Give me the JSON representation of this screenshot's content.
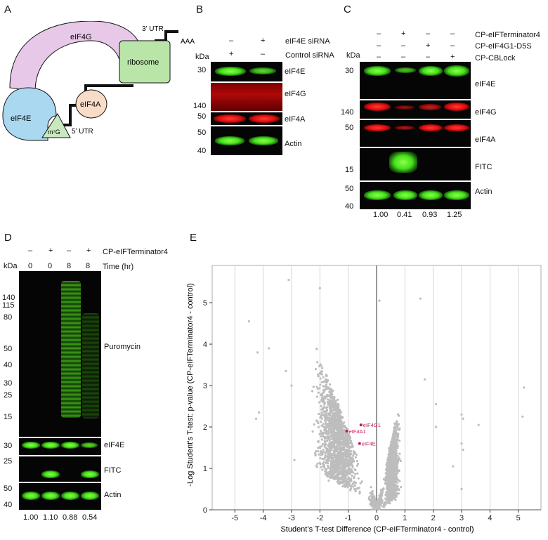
{
  "panels": {
    "a": "A",
    "b": "B",
    "c": "C",
    "d": "D",
    "e": "E"
  },
  "diagram": {
    "utr3": "3’ UTR",
    "aaa": "AAA",
    "ribosome": "ribosome",
    "eif4g": "eIF4G",
    "eif4e": "eIF4E",
    "eif4a": "eIF4A",
    "cap": "m⁷G",
    "utr5": "5’ UTR"
  },
  "panel_b": {
    "row1_label": "eIF4E siRNA",
    "row1_vals": [
      "–",
      "+"
    ],
    "row2_label": "Control siRNA",
    "row2_vals": [
      "+",
      "–"
    ],
    "kda": "kDa",
    "markers": [
      "30",
      "140",
      "50",
      "50",
      "40"
    ],
    "bands": [
      "eIF4E",
      "eIF4G",
      "eIF4A",
      "Actin"
    ]
  },
  "panel_c": {
    "rows": [
      {
        "label": "CP-eIFTerminator4",
        "vals": [
          "–",
          "+",
          "–",
          "–"
        ]
      },
      {
        "label": "CP-eIF4G1-D5S",
        "vals": [
          "–",
          "–",
          "+",
          "–"
        ]
      },
      {
        "label": "CP-CBLock",
        "vals": [
          "–",
          "–",
          "–",
          "+"
        ]
      }
    ],
    "kda": "kDa",
    "markers": [
      "30",
      "140",
      "50",
      "15",
      "50",
      "40"
    ],
    "bands": [
      "eIF4E",
      "eIF4G",
      "eIF4A",
      "FITC",
      "Actin"
    ],
    "quant": [
      "1.00",
      "0.41",
      "0.93",
      "1.25"
    ]
  },
  "panel_d": {
    "row1_label": "CP-eIFTerminator4",
    "row1_vals": [
      "–",
      "+",
      "–",
      "+"
    ],
    "row2_label": "Time (hr)",
    "row2_vals": [
      "0",
      "0",
      "8",
      "8"
    ],
    "kda": "kDa",
    "markers": [
      "140",
      "115",
      "80",
      "50",
      "40",
      "30",
      "25",
      "15",
      "30",
      "25",
      "50",
      "40"
    ],
    "bands": [
      "Puromycin",
      "eIF4E",
      "FITC",
      "Actin"
    ],
    "quant": [
      "1.00",
      "1.10",
      "0.88",
      "0.54"
    ]
  },
  "chart_data": {
    "type": "scatter",
    "title": "",
    "xlabel": "Student’s T-test Difference (CP-eIFTerminator4 - control)",
    "ylabel": "-Log Student’s T-test: p-value (CP-eIFTerminator4 - control)",
    "xlim": [
      -5.8,
      5.8
    ],
    "ylim": [
      0,
      5.9
    ],
    "xticks": [
      "-5",
      "-4",
      "-3",
      "-2",
      "-1",
      "0",
      "1",
      "2",
      "3",
      "4",
      "5"
    ],
    "yticks": [
      "0",
      "1",
      "2",
      "3",
      "4",
      "5"
    ],
    "highlighted": [
      {
        "name": "eIF4G1",
        "x": -0.55,
        "y": 2.05
      },
      {
        "name": "eIF4A1",
        "x": -1.05,
        "y": 1.9
      },
      {
        "name": "eIF4E",
        "x": -0.6,
        "y": 1.6
      }
    ],
    "outliers": [
      {
        "x": -3.1,
        "y": 5.55
      },
      {
        "x": -2.0,
        "y": 5.35
      },
      {
        "x": 1.55,
        "y": 5.1
      },
      {
        "x": 0.1,
        "y": 5.05
      },
      {
        "x": -4.5,
        "y": 4.55
      },
      {
        "x": -4.2,
        "y": 3.8
      },
      {
        "x": -3.8,
        "y": 3.9
      },
      {
        "x": -3.2,
        "y": 3.35
      },
      {
        "x": -3.0,
        "y": 3.0
      },
      {
        "x": -4.15,
        "y": 2.35
      },
      {
        "x": -4.25,
        "y": 2.2
      },
      {
        "x": 5.2,
        "y": 2.95
      },
      {
        "x": 5.15,
        "y": 2.25
      },
      {
        "x": 3.0,
        "y": 2.3
      },
      {
        "x": 3.05,
        "y": 2.2
      },
      {
        "x": 3.6,
        "y": 2.05
      },
      {
        "x": 2.1,
        "y": 2.0
      },
      {
        "x": 3.0,
        "y": 1.6
      },
      {
        "x": 3.05,
        "y": 1.45
      },
      {
        "x": 2.7,
        "y": 1.05
      },
      {
        "x": 2.1,
        "y": 2.55
      },
      {
        "x": 1.7,
        "y": 3.15
      },
      {
        "x": 3.0,
        "y": 0.5
      },
      {
        "x": -2.9,
        "y": 1.2
      }
    ]
  }
}
